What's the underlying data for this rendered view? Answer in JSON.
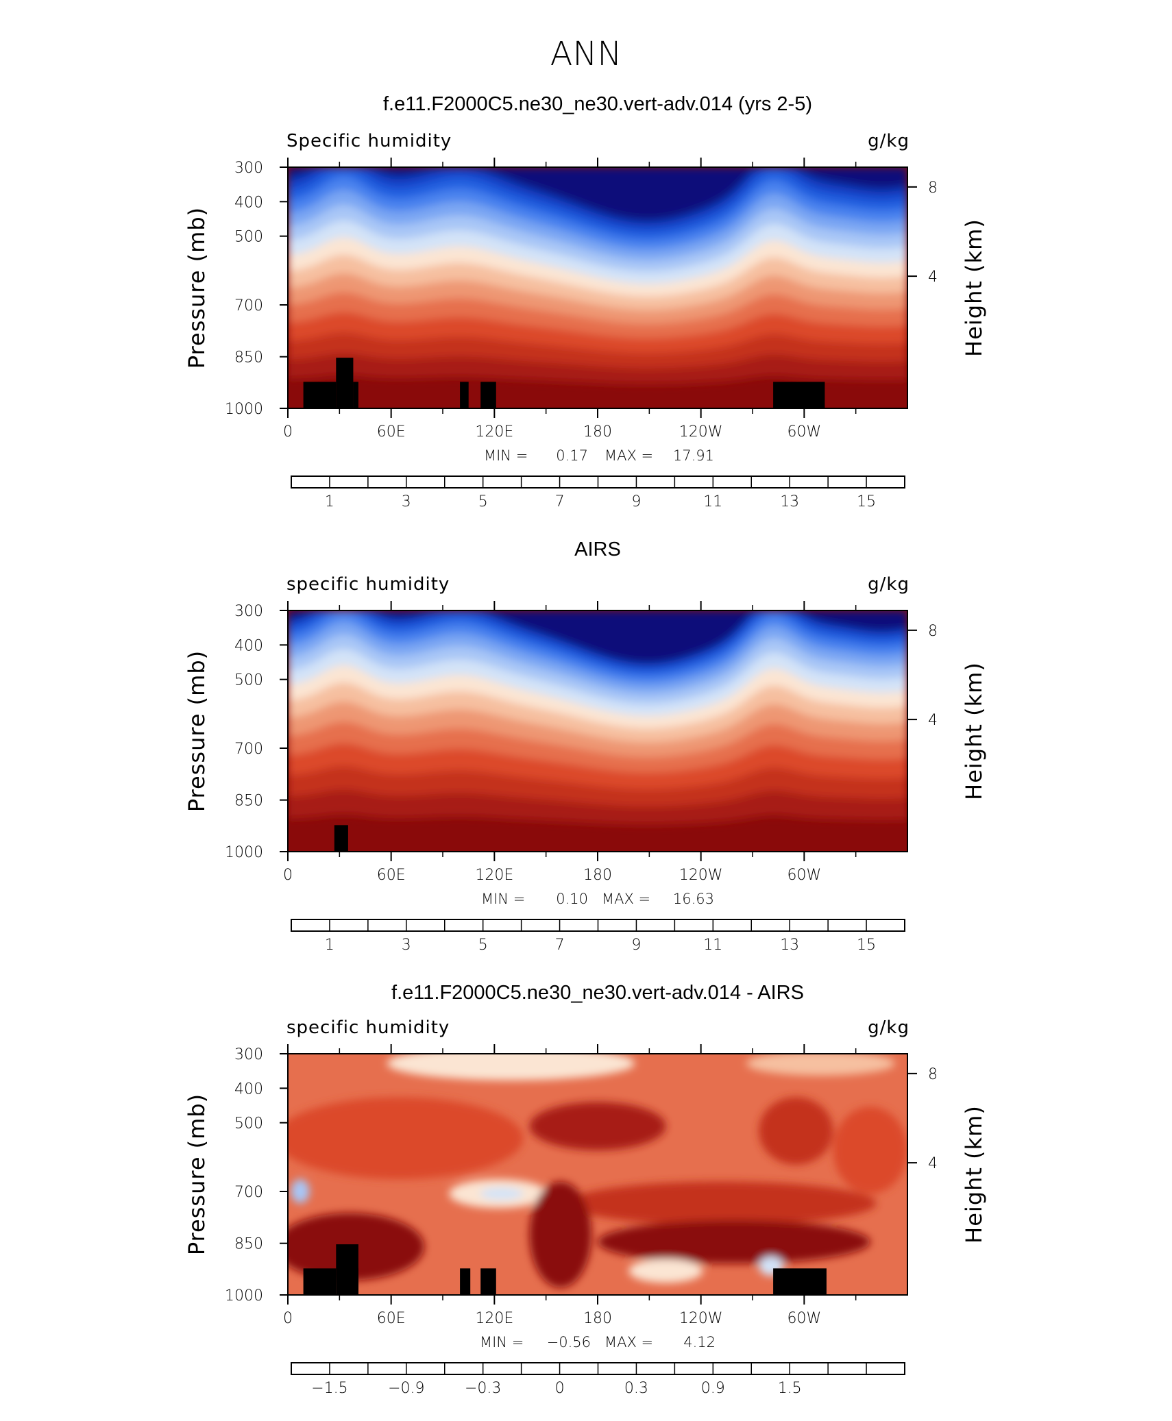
{
  "figure": {
    "title": "ANN"
  },
  "chart_data": [
    {
      "type": "heatmap",
      "subtitle": "f.e11.F2000C5.ne30_ne30.vert-adv.014 (yrs 2-5)",
      "left_label": "Specific humidity",
      "right_label": "g/kg",
      "ylabel": "Pressure (mb)",
      "ylabel2": "Height (km)",
      "x_ticks": [
        "0",
        "60E",
        "120E",
        "180",
        "120W",
        "60W"
      ],
      "y_ticks": [
        "300",
        "400",
        "500",
        "700",
        "850",
        "1000"
      ],
      "y2_ticks": [
        "8",
        "4"
      ],
      "min_label": "MIN =",
      "min_value": "0.17",
      "max_label": "MAX =",
      "max_value": "17.91",
      "field": "absolute",
      "colorbar_labels": [
        "1",
        "3",
        "5",
        "7",
        "9",
        "11",
        "13",
        "15"
      ]
    },
    {
      "type": "heatmap",
      "subtitle": "AIRS",
      "left_label": "specific humidity",
      "right_label": "g/kg",
      "ylabel": "Pressure (mb)",
      "ylabel2": "Height (km)",
      "x_ticks": [
        "0",
        "60E",
        "120E",
        "180",
        "120W",
        "60W"
      ],
      "y_ticks": [
        "300",
        "400",
        "500",
        "700",
        "850",
        "1000"
      ],
      "y2_ticks": [
        "8",
        "4"
      ],
      "min_label": "MIN =",
      "min_value": "0.10",
      "max_label": "MAX =",
      "max_value": "16.63",
      "field": "absolute",
      "colorbar_labels": [
        "1",
        "3",
        "5",
        "7",
        "9",
        "11",
        "13",
        "15"
      ]
    },
    {
      "type": "heatmap",
      "subtitle": "f.e11.F2000C5.ne30_ne30.vert-adv.014 - AIRS",
      "left_label": "specific humidity",
      "right_label": "g/kg",
      "ylabel": "Pressure (mb)",
      "ylabel2": "Height (km)",
      "x_ticks": [
        "0",
        "60E",
        "120E",
        "180",
        "120W",
        "60W"
      ],
      "y_ticks": [
        "300",
        "400",
        "500",
        "700",
        "850",
        "1000"
      ],
      "y2_ticks": [
        "8",
        "4"
      ],
      "min_label": "MIN =",
      "min_value": "−0.56",
      "max_label": "MAX =",
      "max_value": "4.12",
      "field": "difference",
      "colorbar_labels": [
        "−1.5",
        "−0.9",
        "−0.3",
        "0",
        "0.3",
        "0.9",
        "1.5"
      ]
    }
  ],
  "colormap": [
    "#0b0b7a",
    "#0b2aa0",
    "#1243c9",
    "#2461e0",
    "#4a82ee",
    "#7aa6f3",
    "#a8c6f6",
    "#d3e3f8",
    "#fbe5d3",
    "#f6c0a0",
    "#ee9773",
    "#e66f4e",
    "#dc4a2c",
    "#c4331e",
    "#a71b12",
    "#8a0a0a"
  ]
}
